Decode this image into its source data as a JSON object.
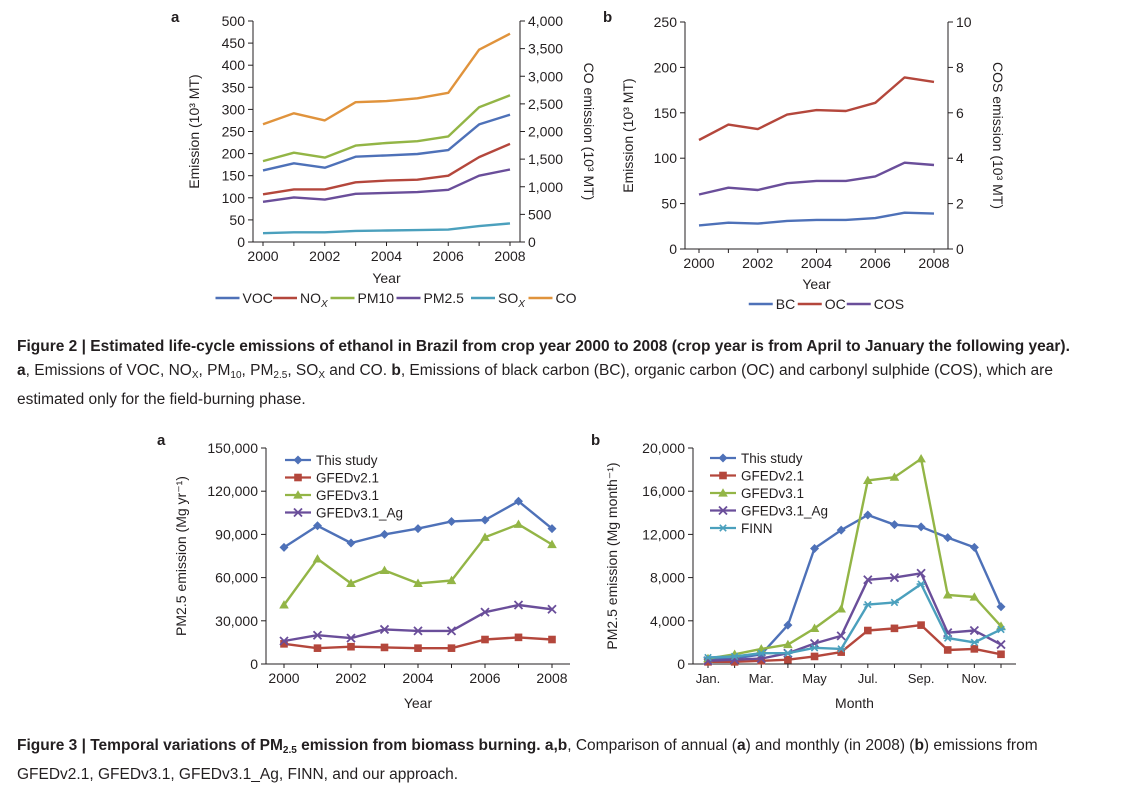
{
  "figure2": {
    "title": "Figure 2 | Estimated life-cycle emissions of ethanol in Brazil from crop year 2000 to 2008 (crop year is from April to January the following year).",
    "a_bold": "a",
    "a_text_1": ", Emissions of VOC, NO",
    "a_text_x": "X",
    "a_text_2": ", PM",
    "a_text_10": "10",
    "a_text_3": ", PM",
    "a_text_25": "2.5",
    "a_text_4": ", SO",
    "a_text_x2": "X",
    "a_text_5": " and CO. ",
    "b_bold": "b",
    "b_text": ", Emissions of black carbon (BC), organic carbon (OC) and carbonyl sulphide (COS), which are estimated only for the field-burning phase."
  },
  "figure3": {
    "title": "Figure 3 | Temporal variations of PM",
    "title_sub": "2.5",
    "title_rest": " emission from biomass burning. a,b",
    "text_1": ", Comparison of annual (",
    "text_a": "a",
    "text_2": ") and monthly (in 2008) (",
    "text_b": "b",
    "text_3": ") emissions from GFEDv2.1, GFEDv3.1, GFEDv3.1_Ag, FINN, and our approach."
  },
  "colors": {
    "blue": "#4e71b8",
    "red": "#b4473c",
    "green": "#93b546",
    "purple": "#6a4e9a",
    "teal": "#4ba0bd",
    "orange": "#e0933c",
    "axis": "#231f20"
  },
  "chart_data": [
    {
      "id": "fig2a",
      "panel_label": "a",
      "type": "line",
      "xlabel": "Year",
      "ylabel": "Emission (10³ MT)",
      "y2label": "CO emission (10³ MT)",
      "x": [
        2000,
        2001,
        2002,
        2003,
        2004,
        2005,
        2006,
        2007,
        2008
      ],
      "xticks": [
        "2000",
        "2002",
        "2004",
        "2006",
        "2008"
      ],
      "xlim": [
        2000,
        2008
      ],
      "ylim": [
        0,
        500
      ],
      "yticks": [
        "0",
        "50",
        "100",
        "150",
        "200",
        "250",
        "300",
        "350",
        "400",
        "450",
        "500"
      ],
      "y2lim": [
        0,
        4000
      ],
      "y2ticks": [
        "0",
        "500",
        "1,000",
        "1,500",
        "2,000",
        "2,500",
        "3,000",
        "3,500",
        "4,000"
      ],
      "legend_position": "bottom",
      "series": [
        {
          "name": "VOC",
          "color": "blue",
          "axis": "left",
          "values": [
            162,
            178,
            168,
            193,
            196,
            199,
            208,
            266,
            288
          ]
        },
        {
          "name": "NOX",
          "color": "red",
          "axis": "left",
          "values": [
            108,
            119,
            119,
            135,
            139,
            141,
            150,
            192,
            222
          ]
        },
        {
          "name": "PM10",
          "color": "green",
          "axis": "left",
          "values": [
            183,
            202,
            191,
            218,
            224,
            228,
            239,
            305,
            332
          ]
        },
        {
          "name": "PM2.5",
          "color": "purple",
          "axis": "left",
          "values": [
            91,
            101,
            96,
            109,
            111,
            113,
            118,
            150,
            164
          ]
        },
        {
          "name": "SOX",
          "color": "teal",
          "axis": "left",
          "values": [
            20,
            22,
            22,
            25,
            26,
            27,
            28,
            36,
            42
          ]
        },
        {
          "name": "CO",
          "color": "orange",
          "axis": "right",
          "values": [
            2130,
            2330,
            2200,
            2530,
            2550,
            2600,
            2700,
            3480,
            3770
          ]
        }
      ]
    },
    {
      "id": "fig2b",
      "panel_label": "b",
      "type": "line",
      "xlabel": "Year",
      "ylabel": "Emission (10³ MT)",
      "y2label": "COS emission (10³ MT)",
      "x": [
        2000,
        2001,
        2002,
        2003,
        2004,
        2005,
        2006,
        2007,
        2008
      ],
      "xticks": [
        "2000",
        "2002",
        "2004",
        "2006",
        "2008"
      ],
      "xlim": [
        2000,
        2008
      ],
      "ylim": [
        0,
        250
      ],
      "yticks": [
        "0",
        "50",
        "100",
        "150",
        "200",
        "250"
      ],
      "y2lim": [
        0,
        10
      ],
      "y2ticks": [
        "0",
        "2",
        "4",
        "6",
        "8",
        "10"
      ],
      "legend_position": "bottom",
      "series": [
        {
          "name": "BC",
          "color": "blue",
          "axis": "left",
          "values": [
            26,
            29,
            28,
            31,
            32,
            32,
            34,
            40,
            39
          ]
        },
        {
          "name": "OC",
          "color": "red",
          "axis": "left",
          "values": [
            120,
            137,
            132,
            148,
            153,
            152,
            161,
            189,
            184
          ]
        },
        {
          "name": "COS",
          "color": "purple",
          "axis": "right",
          "values": [
            2.4,
            2.7,
            2.6,
            2.9,
            3.0,
            3.0,
            3.2,
            3.8,
            3.7
          ]
        }
      ]
    },
    {
      "id": "fig3a",
      "panel_label": "a",
      "type": "line",
      "xlabel": "Year",
      "ylabel": "PM2.5 emission (Mg yr⁻¹)",
      "x": [
        2000,
        2001,
        2002,
        2003,
        2004,
        2005,
        2006,
        2007,
        2008
      ],
      "xticks": [
        "2000",
        "2002",
        "2004",
        "2006",
        "2008"
      ],
      "xlim": [
        2000,
        2008
      ],
      "ylim": [
        0,
        150000
      ],
      "yticks": [
        "0",
        "30,000",
        "60,000",
        "90,000",
        "120,000",
        "150,000"
      ],
      "legend_position": "top-left",
      "series": [
        {
          "name": "This study",
          "color": "blue",
          "marker": "diamond",
          "values": [
            81000,
            96000,
            84000,
            90000,
            94000,
            99000,
            100000,
            113000,
            94000
          ]
        },
        {
          "name": "GFEDv2.1",
          "color": "red",
          "marker": "square",
          "values": [
            14000,
            11000,
            12000,
            11500,
            11000,
            11000,
            17000,
            18500,
            17000
          ]
        },
        {
          "name": "GFEDv3.1",
          "color": "green",
          "marker": "triangle",
          "values": [
            41000,
            73000,
            56000,
            65000,
            56000,
            58000,
            88000,
            97000,
            83000
          ]
        },
        {
          "name": "GFEDv3.1_Ag",
          "color": "purple",
          "marker": "x",
          "values": [
            16000,
            20000,
            18000,
            24000,
            23000,
            23000,
            36000,
            41000,
            38000
          ]
        }
      ]
    },
    {
      "id": "fig3b",
      "panel_label": "b",
      "type": "line",
      "xlabel": "Month",
      "ylabel": "PM2.5 emission (Mg month⁻¹)",
      "x": [
        1,
        2,
        3,
        4,
        5,
        6,
        7,
        8,
        9,
        10,
        11,
        12
      ],
      "xticks": [
        "Jan.",
        "Mar.",
        "May",
        "Jul.",
        "Sep.",
        "Nov."
      ],
      "xtick_positions": [
        1,
        3,
        5,
        7,
        9,
        11
      ],
      "xlim": [
        1,
        12
      ],
      "ylim": [
        0,
        20000
      ],
      "yticks": [
        "0",
        "4,000",
        "8,000",
        "12,000",
        "16,000",
        "20,000"
      ],
      "legend_position": "top-left",
      "series": [
        {
          "name": "This study",
          "color": "blue",
          "marker": "diamond",
          "values": [
            400,
            500,
            900,
            3600,
            10700,
            12400,
            13800,
            12900,
            12700,
            11700,
            10800,
            5300
          ]
        },
        {
          "name": "GFEDv2.1",
          "color": "red",
          "marker": "square",
          "values": [
            200,
            200,
            300,
            400,
            700,
            1100,
            3100,
            3300,
            3600,
            1300,
            1400,
            900
          ]
        },
        {
          "name": "GFEDv3.1",
          "color": "green",
          "marker": "triangle",
          "values": [
            500,
            900,
            1400,
            1800,
            3300,
            5100,
            17000,
            17300,
            19000,
            6400,
            6200,
            3500
          ]
        },
        {
          "name": "GFEDv3.1_Ag",
          "color": "purple",
          "marker": "x",
          "values": [
            300,
            400,
            500,
            1000,
            1900,
            2600,
            7800,
            8000,
            8400,
            2900,
            3100,
            1800
          ]
        },
        {
          "name": "FINN",
          "color": "teal",
          "marker": "star",
          "values": [
            600,
            700,
            1000,
            1000,
            1500,
            1400,
            5500,
            5700,
            7400,
            2400,
            2000,
            3200
          ]
        }
      ]
    }
  ]
}
